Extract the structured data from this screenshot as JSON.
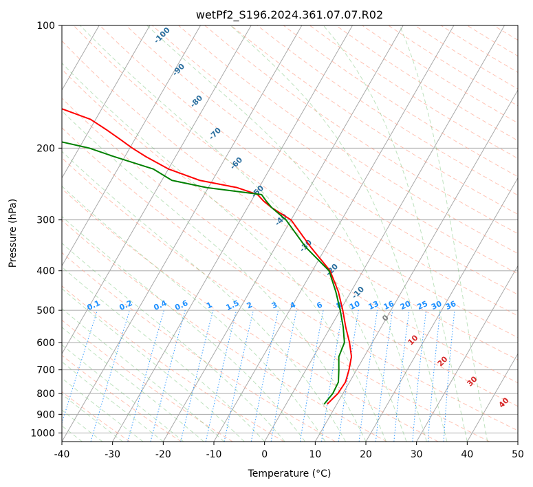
{
  "chart_data": {
    "type": "line",
    "title": "wetPf2_S196.2024.361.07.07.R02",
    "xlabel": "Temperature (°C)",
    "ylabel": "Pressure (hPa)",
    "xlim": [
      -40,
      50
    ],
    "ylim": [
      1050,
      100
    ],
    "y_scale": "log",
    "grid": true,
    "x_ticks": [
      -40,
      -30,
      -20,
      -10,
      0,
      10,
      20,
      30,
      40,
      50
    ],
    "y_ticks": [
      100,
      200,
      300,
      400,
      500,
      600,
      700,
      800,
      900,
      1000
    ],
    "series": [
      {
        "color": "#ff0000",
        "points": [
          [
            8.1,
            850
          ],
          [
            9.0,
            800
          ],
          [
            9.2,
            750
          ],
          [
            8.5,
            700
          ],
          [
            7.5,
            650
          ],
          [
            5.5,
            600
          ],
          [
            3.0,
            550
          ],
          [
            0.5,
            500
          ],
          [
            -2.5,
            450
          ],
          [
            -6.5,
            400
          ],
          [
            -13,
            350
          ],
          [
            -20,
            300
          ],
          [
            -25.2,
            280
          ],
          [
            -27.5,
            270
          ],
          [
            -29.5,
            260
          ],
          [
            -34.3,
            250
          ],
          [
            -42.5,
            240
          ],
          [
            -50,
            225
          ],
          [
            -55.8,
            210
          ],
          [
            -59.5,
            200
          ],
          [
            -63,
            190
          ],
          [
            -66.8,
            180
          ],
          [
            -71,
            170
          ],
          [
            -78,
            160
          ],
          [
            -84,
            150
          ],
          [
            -89,
            140
          ],
          [
            -93,
            130
          ],
          [
            -98,
            120
          ],
          [
            -101.5,
            110
          ],
          [
            -105,
            100
          ]
        ]
      },
      {
        "color": "#008000",
        "points": [
          [
            7.5,
            850
          ],
          [
            8.0,
            800
          ],
          [
            7.8,
            750
          ],
          [
            6.5,
            700
          ],
          [
            5.0,
            650
          ],
          [
            4.5,
            600
          ],
          [
            2.5,
            550
          ],
          [
            0.0,
            500
          ],
          [
            -3.0,
            450
          ],
          [
            -6.7,
            400
          ],
          [
            -14,
            350
          ],
          [
            -21,
            300
          ],
          [
            -25.2,
            280
          ],
          [
            -27.0,
            270
          ],
          [
            -28.7,
            260
          ],
          [
            -40.3,
            250
          ],
          [
            -48.0,
            240
          ],
          [
            -53,
            225
          ],
          [
            -62,
            210
          ],
          [
            -68,
            200
          ],
          [
            -77,
            190
          ],
          [
            -80,
            180
          ],
          [
            -87,
            170
          ],
          [
            -95,
            160
          ],
          [
            -105,
            150
          ],
          [
            -108.5,
            140
          ],
          [
            -108.5,
            130
          ],
          [
            -113,
            120
          ],
          [
            -116,
            110
          ],
          [
            -121,
            100
          ]
        ]
      }
    ],
    "dry_adiabat_labels": [
      "-100",
      "-90",
      "-80",
      "-70",
      "-60",
      "-50",
      "-40",
      "-30",
      "-20",
      "-10"
    ],
    "mixing_ratio_labels": [
      "0.1",
      "0.2",
      "0.4",
      "0.6",
      "1",
      "1.5",
      "2",
      "3",
      "4",
      "6",
      "8",
      "10",
      "13",
      "16",
      "20",
      "25",
      "30",
      "36"
    ],
    "moist_adiabat_labels": [
      "0",
      "10",
      "20",
      "30",
      "40"
    ],
    "colors": {
      "temperature": "#ff0000",
      "dewpoint": "#008000",
      "dry_adiabat_label": "#2a6e9e",
      "mixing_ratio": "#1e90ff",
      "moist_adiabat_label": "#d62728",
      "dry_adiabat_line": "#ff9a80",
      "moist_adiabat_line": "#6fbf6f",
      "grid": "#a8a8a8"
    }
  }
}
